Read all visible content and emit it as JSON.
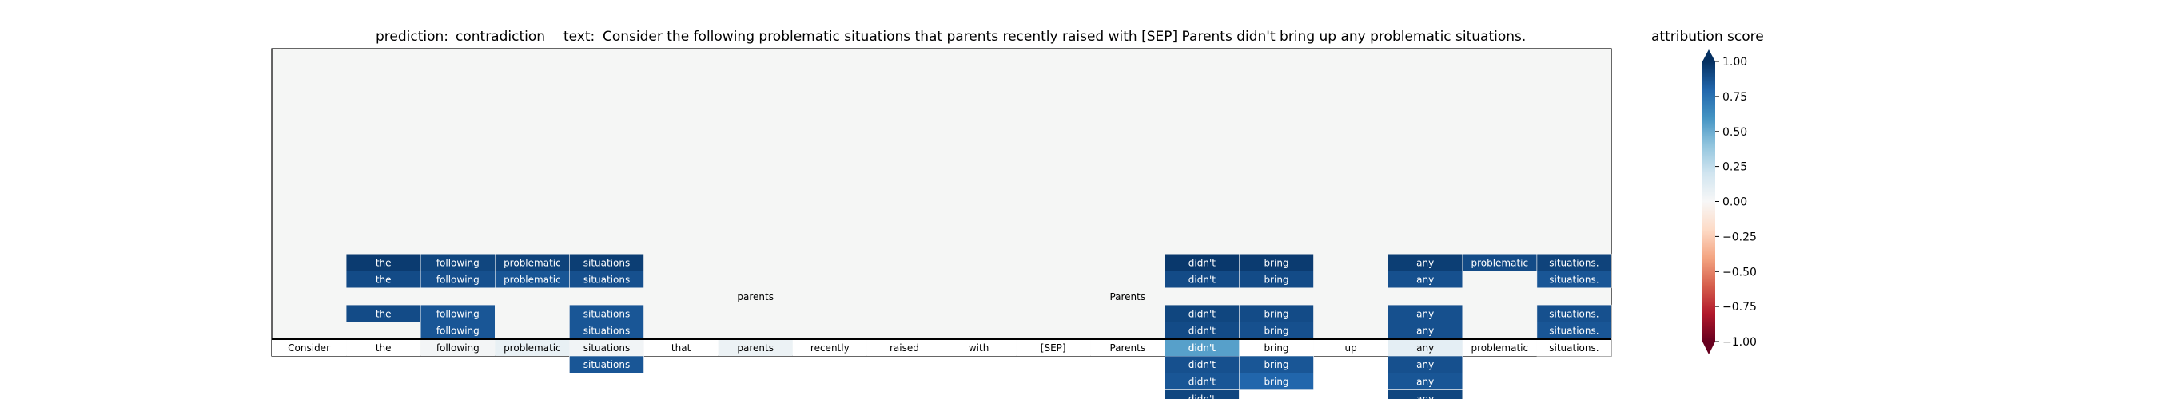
{
  "header": {
    "prediction_label": "prediction:",
    "prediction_value": "contradiction",
    "text_label": "text:",
    "text_value": "Consider the following problematic situations that parents recently raised with [SEP] Parents didn't bring up any problematic situations."
  },
  "colorbar": {
    "title": "attribution score",
    "ticks": [
      "1.00",
      "0.75",
      "0.50",
      "0.25",
      "0.00",
      "−0.25",
      "−0.50",
      "−0.75",
      "−1.00"
    ],
    "tick_values": [
      1.0,
      0.75,
      0.5,
      0.25,
      0.0,
      -0.25,
      -0.5,
      -0.75,
      -1.0
    ],
    "colormap": "RdBu",
    "range": [
      -1,
      1
    ]
  },
  "chart_data": {
    "type": "heatmap",
    "title": "",
    "xlabel": "",
    "ylabel": "",
    "tokens": [
      "Consider",
      "the",
      "following",
      "problematic",
      "situations",
      "that",
      "parents",
      "recently",
      "raised",
      "with",
      "[SEP]",
      "Parents",
      "didn't",
      "bring",
      "up",
      "any",
      "problematic",
      "situations."
    ],
    "base_row_scores": [
      0.0,
      0.0,
      0.02,
      0.08,
      0.03,
      0.0,
      0.06,
      0.0,
      0.0,
      0.0,
      0.0,
      0.0,
      0.55,
      0.0,
      0.0,
      0.1,
      0.0,
      0.0
    ],
    "rows": [
      {
        "label": "",
        "scores": [
          null,
          null,
          null,
          null,
          null,
          null,
          null,
          null,
          null,
          null,
          null,
          null,
          null,
          null,
          null,
          null,
          null,
          null
        ]
      },
      {
        "label": "",
        "scores": [
          null,
          null,
          null,
          null,
          null,
          null,
          null,
          null,
          null,
          null,
          null,
          null,
          null,
          null,
          null,
          null,
          null,
          null
        ]
      },
      {
        "label": "",
        "scores": [
          null,
          null,
          null,
          null,
          null,
          null,
          null,
          null,
          null,
          null,
          null,
          null,
          null,
          null,
          null,
          null,
          null,
          null
        ]
      },
      {
        "label": "",
        "scores": [
          null,
          null,
          null,
          null,
          null,
          null,
          null,
          null,
          null,
          null,
          null,
          null,
          null,
          null,
          null,
          null,
          null,
          null
        ]
      },
      {
        "label": "",
        "scores": [
          null,
          0.96,
          0.92,
          0.93,
          0.95,
          null,
          null,
          null,
          null,
          null,
          null,
          null,
          0.97,
          0.96,
          null,
          0.95,
          0.9,
          0.93
        ]
      },
      {
        "label": "",
        "scores": [
          null,
          0.9,
          0.88,
          0.86,
          0.88,
          null,
          null,
          null,
          null,
          null,
          null,
          null,
          0.9,
          0.9,
          null,
          0.88,
          null,
          0.86
        ]
      },
      {
        "label": "",
        "scores": [
          null,
          null,
          null,
          null,
          null,
          null,
          0.0,
          null,
          null,
          null,
          null,
          0.0,
          null,
          null,
          null,
          null,
          null,
          null
        ]
      },
      {
        "label": "",
        "scores": [
          null,
          0.9,
          0.86,
          null,
          0.86,
          null,
          null,
          null,
          null,
          null,
          null,
          null,
          0.92,
          0.9,
          null,
          0.88,
          null,
          0.88
        ]
      },
      {
        "label": "",
        "scores": [
          null,
          null,
          0.86,
          null,
          0.86,
          null,
          null,
          null,
          null,
          null,
          null,
          null,
          0.9,
          0.88,
          null,
          0.88,
          null,
          0.86
        ]
      },
      {
        "label": "",
        "scores": [
          null,
          null,
          null,
          null,
          0.86,
          null,
          null,
          null,
          null,
          null,
          null,
          null,
          0.88,
          0.86,
          null,
          0.86,
          null,
          0.86
        ]
      },
      {
        "label": "",
        "scores": [
          null,
          null,
          null,
          null,
          0.86,
          null,
          null,
          null,
          null,
          null,
          null,
          null,
          0.88,
          0.86,
          null,
          0.88,
          null,
          null
        ]
      },
      {
        "label": "",
        "scores": [
          null,
          null,
          null,
          null,
          null,
          null,
          null,
          null,
          null,
          null,
          null,
          null,
          0.86,
          0.8,
          null,
          0.86,
          null,
          null
        ]
      },
      {
        "label": "",
        "scores": [
          null,
          null,
          null,
          null,
          null,
          null,
          null,
          null,
          null,
          null,
          null,
          null,
          0.92,
          null,
          null,
          0.92,
          null,
          null
        ]
      }
    ]
  }
}
